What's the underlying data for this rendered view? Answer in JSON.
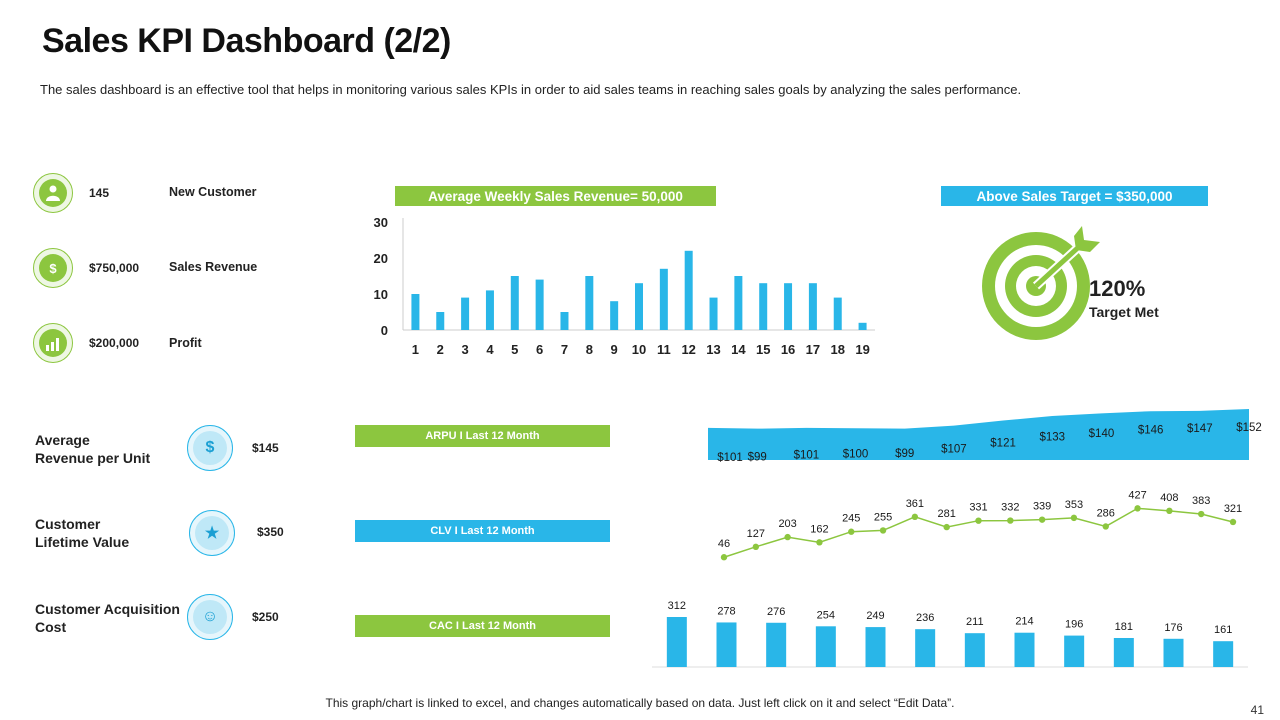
{
  "title": "Sales KPI Dashboard (2/2)",
  "subtitle": "The sales dashboard is an effective tool that helps in monitoring various sales KPIs in order to aid sales teams in reaching sales goals by analyzing the sales performance.",
  "kpis": [
    {
      "value": "145",
      "label": "New Customer",
      "icon": "customer-icon"
    },
    {
      "value": "$750,000",
      "label": "Sales Revenue",
      "icon": "revenue-hand-icon"
    },
    {
      "value": "$200,000",
      "label": "Profit",
      "icon": "profit-chart-icon"
    }
  ],
  "weekly_banner": "Average Weekly Sales Revenue= 50,000",
  "target_banner": "Above Sales Target = $350,000",
  "target": {
    "percent": "120%",
    "label": "Target Met",
    "icon": "target-arrow-icon"
  },
  "metrics": [
    {
      "label_line1": "Average",
      "label_line2": "Revenue per Unit",
      "value": "$145",
      "icon": "money-hand-icon",
      "banner": "ARPU I Last 12 Month"
    },
    {
      "label_line1": "Customer",
      "label_line2": "Lifetime Value",
      "value": "$350",
      "icon": "cart-hand-icon",
      "banner": "CLV I Last 12 Month"
    },
    {
      "label_line1": "Customer Acquisition",
      "label_line2": "Cost",
      "value": "$250",
      "icon": "user-dollar-icon",
      "banner": "CAC I Last 12 Month"
    }
  ],
  "footer": "This graph/chart is linked to excel, and changes automatically based on data. Just left click on it and select “Edit Data”.",
  "page_number": "41",
  "colors": {
    "green": "#8cc63f",
    "blue": "#29b6e8"
  },
  "chart_data": [
    {
      "type": "bar",
      "title": "Average Weekly Sales Revenue= 50,000",
      "categories": [
        "1",
        "2",
        "3",
        "4",
        "5",
        "6",
        "7",
        "8",
        "9",
        "10",
        "11",
        "12",
        "13",
        "14",
        "15",
        "16",
        "17",
        "18",
        "19"
      ],
      "values": [
        10,
        5,
        9,
        11,
        15,
        14,
        5,
        15,
        8,
        13,
        17,
        22,
        9,
        15,
        13,
        13,
        13,
        9,
        2
      ],
      "yticks": [
        "0",
        "10",
        "20",
        "30"
      ],
      "ylim": [
        0,
        30
      ]
    },
    {
      "type": "area",
      "title": "ARPU I Last 12 Month",
      "labels": [
        "$101",
        "$99",
        "$101",
        "$100",
        "$99",
        "$107",
        "$121",
        "$133",
        "$140",
        "$146",
        "$147",
        "$152"
      ],
      "values": [
        101,
        99,
        101,
        100,
        99,
        107,
        121,
        133,
        140,
        146,
        147,
        152
      ]
    },
    {
      "type": "line",
      "title": "CLV I Last 12 Month",
      "values": [
        46,
        127,
        203,
        162,
        245,
        255,
        361,
        281,
        331,
        332,
        339,
        353,
        286,
        427,
        408,
        383,
        321
      ]
    },
    {
      "type": "bar",
      "title": "CAC I Last 12 Month",
      "values": [
        312,
        278,
        276,
        254,
        249,
        236,
        211,
        214,
        196,
        181,
        176,
        161
      ]
    }
  ]
}
